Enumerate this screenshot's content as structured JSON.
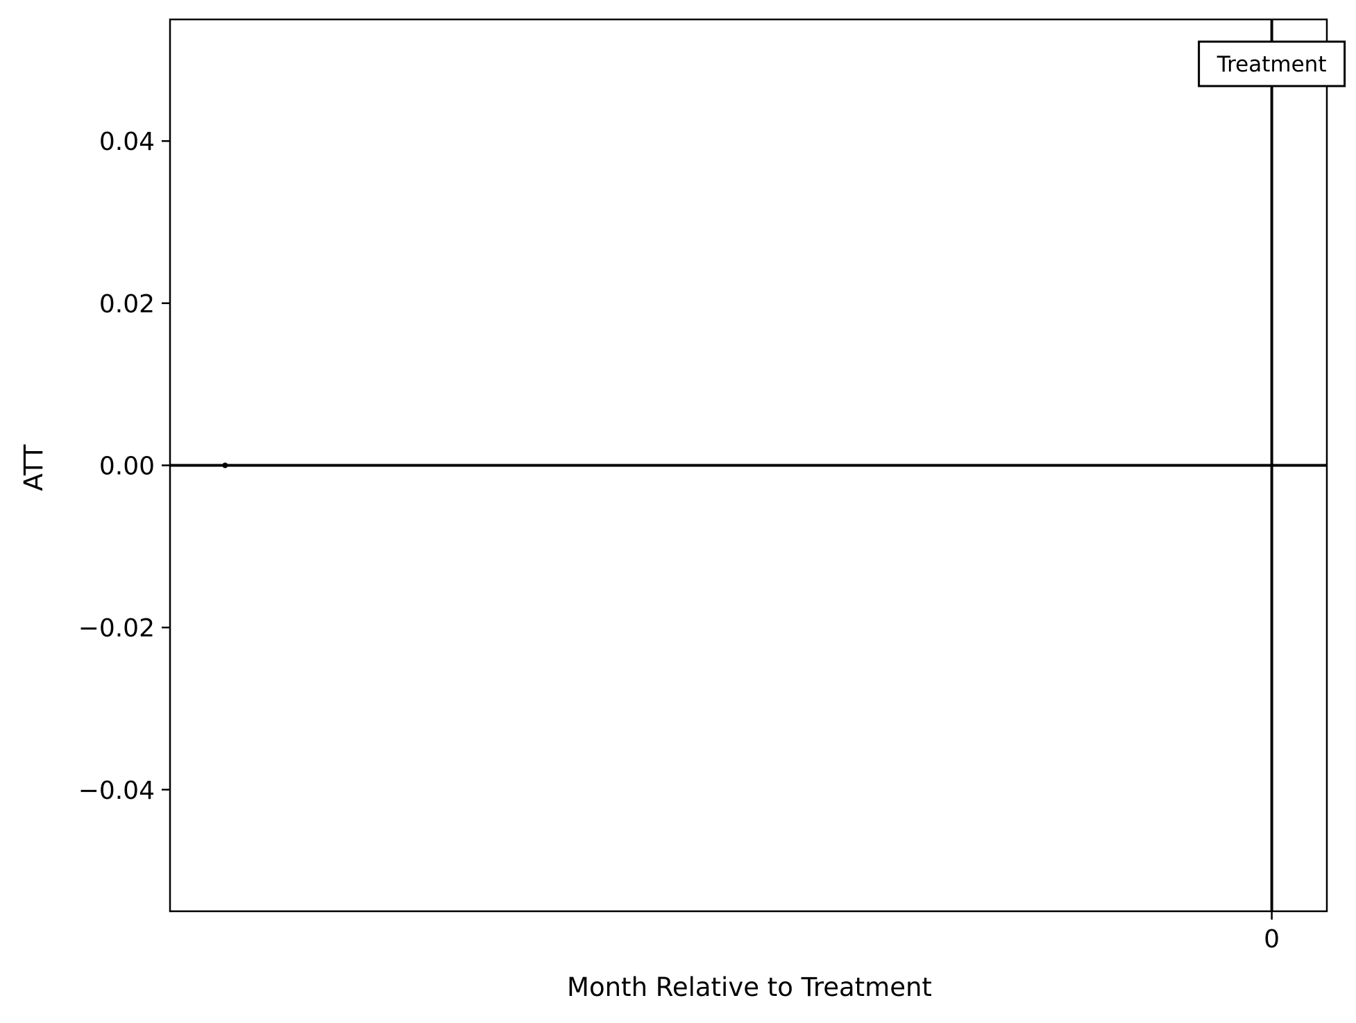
{
  "chart_data": {
    "type": "scatter",
    "title": "",
    "xlabel": "Month Relative to Treatment",
    "ylabel": "ATT",
    "xlim": [
      -20,
      1
    ],
    "ylim": [
      -0.055,
      0.055
    ],
    "x_ticks": [
      0
    ],
    "x_tick_labels": [
      "0"
    ],
    "y_ticks": [
      -0.04,
      -0.02,
      0.0,
      0.02,
      0.04
    ],
    "y_tick_labels": [
      "−0.04",
      "−0.02",
      "0.00",
      "0.02",
      "0.04"
    ],
    "grid": false,
    "points": [
      {
        "x": -19,
        "y": 0.0
      }
    ],
    "reference_lines": {
      "horizontal_y": 0.0,
      "vertical_x": 0
    },
    "annotation": {
      "text": "Treatment",
      "x": 0
    },
    "colors": {
      "line": "#000000",
      "point": "#000000",
      "frame": "#000000"
    }
  }
}
